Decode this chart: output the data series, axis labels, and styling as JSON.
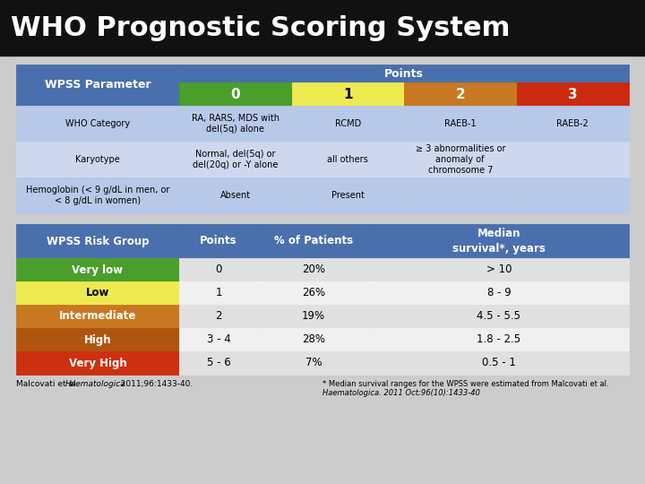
{
  "title": "WHO Prognostic Scoring System",
  "title_bg": "#111111",
  "title_color": "#ffffff",
  "title_fontsize": 22,
  "bg_color": "#cccccc",
  "top_table": {
    "header_bg": "#4a6fad",
    "header_text_color": "#ffffff",
    "param_col_bg": "#4a6fad",
    "row_bg_odd": "#b8c8e8",
    "row_bg_even": "#cdd8ef",
    "col0_bg": "#4a9e2a",
    "col1_bg": "#eeea50",
    "col2_bg": "#c87820",
    "col3_bg": "#cc2a10",
    "col_text_color": "#ffffff",
    "col1_text_color": "#000000",
    "param_col": "WPSS Parameter",
    "points_header": "Points",
    "col_headers": [
      "0",
      "1",
      "2",
      "3"
    ],
    "rows": [
      {
        "param": "WHO Category",
        "vals": [
          "RA, RARS, MDS with\ndel(5q) alone",
          "RCMD",
          "RAEB-1",
          "RAEB-2"
        ]
      },
      {
        "param": "Karyotype",
        "vals": [
          "Normal, del(5q) or\ndel(20q) or -Y alone",
          "all others",
          "≥ 3 abnormalities or\nanomaly of\nchromosome 7",
          ""
        ]
      },
      {
        "param": "Hemoglobin (< 9 g/dL in men, or\n< 8 g/dL in women)",
        "vals": [
          "Absent",
          "Present",
          "",
          ""
        ]
      }
    ]
  },
  "bottom_table": {
    "header_bg": "#4a6fad",
    "header_text_color": "#ffffff",
    "row_bg_odd": "#e0e0e0",
    "row_bg_even": "#f0f0f0",
    "risk_colors": [
      "#4a9e2a",
      "#eeea50",
      "#c87820",
      "#b05510",
      "#cc3010"
    ],
    "risk_text_colors": [
      "#ffffff",
      "#000000",
      "#ffffff",
      "#ffffff",
      "#ffffff"
    ],
    "headers": [
      "WPSS Risk Group",
      "Points",
      "% of Patients",
      "Median\nsurvival*, years"
    ],
    "rows": [
      {
        "group": "Very low",
        "points": "0",
        "pct": "20%",
        "survival": "> 10"
      },
      {
        "group": "Low",
        "points": "1",
        "pct": "26%",
        "survival": "8 - 9"
      },
      {
        "group": "Intermediate",
        "points": "2",
        "pct": "19%",
        "survival": "4.5 - 5.5"
      },
      {
        "group": "High",
        "points": "3 - 4",
        "pct": "28%",
        "survival": "1.8 - 2.5"
      },
      {
        "group": "Very High",
        "points": "5 - 6",
        "pct": "7%",
        "survival": "0.5 - 1"
      }
    ]
  },
  "footnote1": "* Median survival ranges for the WPSS were estimated from Malcovati et al.",
  "footnote2": "Haematologica. 2011 Oct;96(10):1433-40",
  "citation_plain1": "Malcovati et al. ",
  "citation_italic": "Haematologica",
  "citation_plain2": ". 2011;96:1433-40."
}
